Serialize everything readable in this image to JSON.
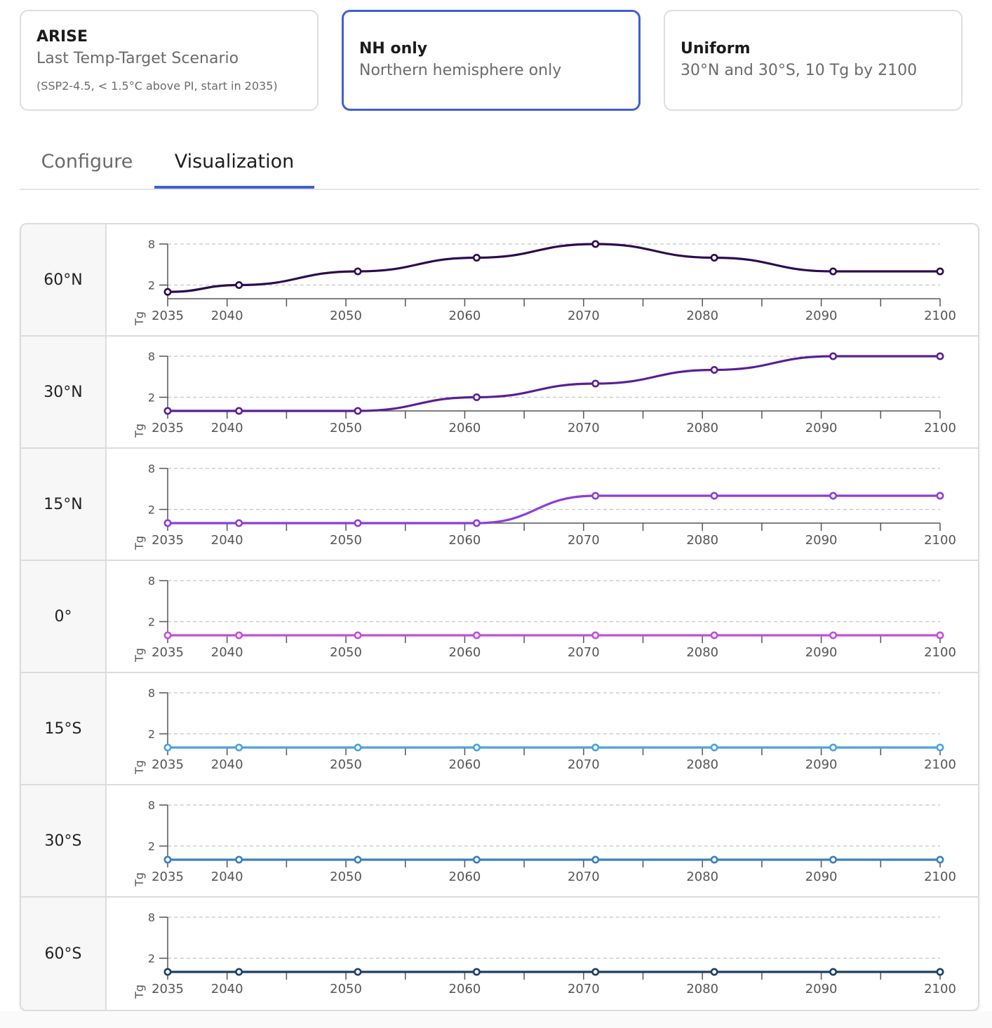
{
  "scenarios": [
    {
      "title": "ARISE",
      "subtitle": "Last Temp-Target Scenario",
      "note": "(SSP2-4.5, < 1.5°C above PI, start in 2035)",
      "selected": false
    },
    {
      "title": "NH only",
      "subtitle": "Northern hemisphere only",
      "note": "",
      "selected": true
    },
    {
      "title": "Uniform",
      "subtitle": "30°N and 30°S, 10 Tg by 2100",
      "note": "",
      "selected": false
    }
  ],
  "tabs": [
    {
      "label": "Configure",
      "active": false
    },
    {
      "label": "Visualization",
      "active": true
    }
  ],
  "chart_data": [
    {
      "type": "line",
      "row_label": "60°N",
      "color": "#2d0a4e",
      "x": [
        2035,
        2041,
        2051,
        2061,
        2071,
        2081,
        2091,
        2100
      ],
      "y": [
        1,
        2,
        4,
        6,
        8,
        6,
        4,
        4
      ],
      "xticks": [
        2035,
        2040,
        2050,
        2060,
        2070,
        2080,
        2090,
        2100
      ],
      "yticks": [
        2,
        8
      ],
      "ylabel": "Tg",
      "xlim": [
        2035,
        2100
      ],
      "ylim": [
        0,
        8
      ],
      "grid": true
    },
    {
      "type": "line",
      "row_label": "30°N",
      "color": "#5a1f94",
      "x": [
        2035,
        2041,
        2051,
        2061,
        2071,
        2081,
        2091,
        2100
      ],
      "y": [
        0,
        0,
        0,
        2,
        4,
        6,
        8,
        8
      ],
      "xticks": [
        2035,
        2040,
        2050,
        2060,
        2070,
        2080,
        2090,
        2100
      ],
      "yticks": [
        2,
        8
      ],
      "ylabel": "Tg",
      "xlim": [
        2035,
        2100
      ],
      "ylim": [
        0,
        8
      ],
      "grid": true
    },
    {
      "type": "line",
      "row_label": "15°N",
      "color": "#8a3fd6",
      "x": [
        2035,
        2041,
        2051,
        2061,
        2071,
        2081,
        2091,
        2100
      ],
      "y": [
        0,
        0,
        0,
        0,
        4,
        4,
        4,
        4
      ],
      "xticks": [
        2035,
        2040,
        2050,
        2060,
        2070,
        2080,
        2090,
        2100
      ],
      "yticks": [
        2,
        8
      ],
      "ylabel": "Tg",
      "xlim": [
        2035,
        2100
      ],
      "ylim": [
        0,
        8
      ],
      "grid": true
    },
    {
      "type": "line",
      "row_label": "0°",
      "color": "#c24fd9",
      "x": [
        2035,
        2041,
        2051,
        2061,
        2071,
        2081,
        2091,
        2100
      ],
      "y": [
        0,
        0,
        0,
        0,
        0,
        0,
        0,
        0
      ],
      "xticks": [
        2035,
        2040,
        2050,
        2060,
        2070,
        2080,
        2090,
        2100
      ],
      "yticks": [
        2,
        8
      ],
      "ylabel": "Tg",
      "xlim": [
        2035,
        2100
      ],
      "ylim": [
        0,
        8
      ],
      "grid": true
    },
    {
      "type": "line",
      "row_label": "15°S",
      "color": "#4aa3dc",
      "x": [
        2035,
        2041,
        2051,
        2061,
        2071,
        2081,
        2091,
        2100
      ],
      "y": [
        0,
        0,
        0,
        0,
        0,
        0,
        0,
        0
      ],
      "xticks": [
        2035,
        2040,
        2050,
        2060,
        2070,
        2080,
        2090,
        2100
      ],
      "yticks": [
        2,
        8
      ],
      "ylabel": "Tg",
      "xlim": [
        2035,
        2100
      ],
      "ylim": [
        0,
        8
      ],
      "grid": true
    },
    {
      "type": "line",
      "row_label": "30°S",
      "color": "#3a7fc0",
      "x": [
        2035,
        2041,
        2051,
        2061,
        2071,
        2081,
        2091,
        2100
      ],
      "y": [
        0,
        0,
        0,
        0,
        0,
        0,
        0,
        0
      ],
      "xticks": [
        2035,
        2040,
        2050,
        2060,
        2070,
        2080,
        2090,
        2100
      ],
      "yticks": [
        2,
        8
      ],
      "ylabel": "Tg",
      "xlim": [
        2035,
        2100
      ],
      "ylim": [
        0,
        8
      ],
      "grid": true
    },
    {
      "type": "line",
      "row_label": "60°S",
      "color": "#1d3f66",
      "x": [
        2035,
        2041,
        2051,
        2061,
        2071,
        2081,
        2091,
        2100
      ],
      "y": [
        0,
        0,
        0,
        0,
        0,
        0,
        0,
        0
      ],
      "xticks": [
        2035,
        2040,
        2050,
        2060,
        2070,
        2080,
        2090,
        2100
      ],
      "yticks": [
        2,
        8
      ],
      "ylabel": "Tg",
      "xlim": [
        2035,
        2100
      ],
      "ylim": [
        0,
        8
      ],
      "grid": true
    }
  ]
}
